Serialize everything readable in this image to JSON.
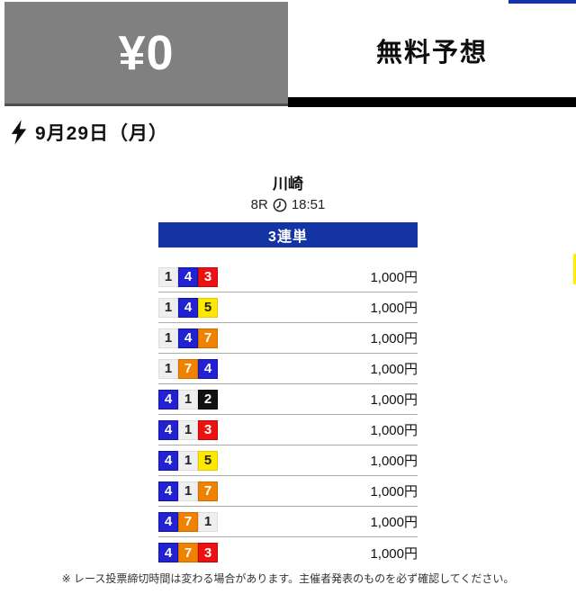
{
  "header": {
    "price_label": "¥0",
    "title": "無料予想"
  },
  "date_row": {
    "icon": "lightning-bolt",
    "date": "9月29日（月）"
  },
  "race": {
    "venue": "川崎",
    "race_no": "8R",
    "time_icon": "clock",
    "time": "18:51",
    "bet_type": "3連単"
  },
  "bets": [
    {
      "numbers": [
        1,
        4,
        3
      ],
      "amount": "1,000円"
    },
    {
      "numbers": [
        1,
        4,
        5
      ],
      "amount": "1,000円"
    },
    {
      "numbers": [
        1,
        4,
        7
      ],
      "amount": "1,000円"
    },
    {
      "numbers": [
        1,
        7,
        4
      ],
      "amount": "1,000円"
    },
    {
      "numbers": [
        4,
        1,
        2
      ],
      "amount": "1,000円"
    },
    {
      "numbers": [
        4,
        1,
        3
      ],
      "amount": "1,000円"
    },
    {
      "numbers": [
        4,
        1,
        5
      ],
      "amount": "1,000円"
    },
    {
      "numbers": [
        4,
        1,
        7
      ],
      "amount": "1,000円"
    },
    {
      "numbers": [
        4,
        7,
        1
      ],
      "amount": "1,000円"
    },
    {
      "numbers": [
        4,
        7,
        3
      ],
      "amount": "1,000円"
    }
  ],
  "number_colors": {
    "1": {
      "bg": "#efefef",
      "fg": "#222222",
      "border": "#dddddd"
    },
    "2": {
      "bg": "#111111",
      "fg": "#ffffff",
      "border": "#000000"
    },
    "3": {
      "bg": "#ee1111",
      "fg": "#ffffff",
      "border": "#c40808"
    },
    "4": {
      "bg": "#2222d2",
      "fg": "#ffffff",
      "border": "#1414ad"
    },
    "5": {
      "bg": "#ffe800",
      "fg": "#222222",
      "border": "#e0ca00"
    },
    "7": {
      "bg": "#ef8200",
      "fg": "#ffffff",
      "border": "#d06f00"
    }
  },
  "colors": {
    "accent_blue": "#1434a4",
    "header_gray": "#808080",
    "black_bar": "#000000",
    "yellow_sliver": "#ffee00"
  },
  "footer": {
    "note": "※ レース投票締切時間は変わる場合があります。主催者発表のものを必ず確認してください。"
  }
}
